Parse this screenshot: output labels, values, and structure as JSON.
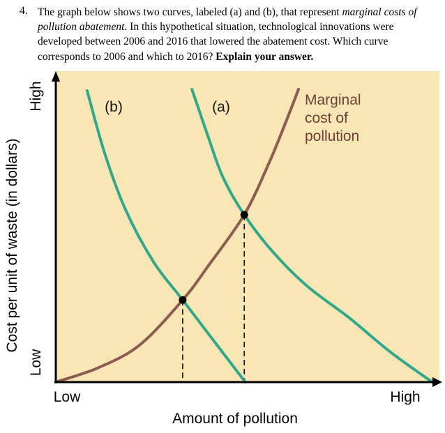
{
  "question": {
    "number": "4.",
    "segments": {
      "lead": "The graph below shows two curves, labeled (a) and (b), that represent ",
      "italic": "marginal costs of pollution abatement",
      "middle": ".  In this hypothetical situation, technological innovations were developed between 2006 and 2016 that lowered the abatement cost.  Which curve corresponds to 2006 and which to 2016?  ",
      "bold": "Explain your answer."
    }
  },
  "chart": {
    "y_axis_title": "Cost per unit of waste (in dollars)",
    "y_high_label": "High",
    "y_low_label": "Low",
    "x_low_label": "Low",
    "x_high_label": "High",
    "x_axis_title": "Amount of pollution",
    "curve_b_label": "(b)",
    "curve_a_label": "(a)",
    "mcp_label": [
      "Marginal",
      "cost of",
      "pollution"
    ],
    "colors": {
      "plot_background": "#F8E6B4",
      "abatement_curves": "#2EA98C",
      "marginal_cost_curve": "#8D5B50",
      "mcp_label_text": "#6E4038",
      "axis": "#000000"
    }
  },
  "chart_data": {
    "type": "line",
    "title": "",
    "x_axis": {
      "label": "Amount of pollution",
      "tick_labels": [
        "Low",
        "High"
      ],
      "range": [
        0,
        1
      ]
    },
    "y_axis": {
      "label": "Cost per unit of waste (in dollars)",
      "tick_labels": [
        "Low",
        "High"
      ],
      "range": [
        0,
        1
      ]
    },
    "grid": false,
    "legend": "none",
    "series": [
      {
        "name": "(b) marginal cost of pollution abatement",
        "color": "#2EA98C",
        "points": [
          [
            0.082,
            0.954
          ],
          [
            0.128,
            0.749
          ],
          [
            0.182,
            0.566
          ],
          [
            0.255,
            0.395
          ],
          [
            0.332,
            0.269
          ],
          [
            0.411,
            0.139
          ],
          [
            0.496,
            0.0
          ]
        ]
      },
      {
        "name": "(a) marginal cost of pollution abatement",
        "color": "#2EA98C",
        "points": [
          [
            0.356,
            0.959
          ],
          [
            0.401,
            0.795
          ],
          [
            0.438,
            0.669
          ],
          [
            0.493,
            0.548
          ],
          [
            0.566,
            0.429
          ],
          [
            0.657,
            0.315
          ],
          [
            0.766,
            0.212
          ],
          [
            0.876,
            0.098
          ],
          [
            0.985,
            0.0
          ]
        ]
      },
      {
        "name": "Marginal cost of pollution",
        "color": "#8D5B50",
        "points": [
          [
            0.0,
            0.0
          ],
          [
            0.109,
            0.046
          ],
          [
            0.219,
            0.121
          ],
          [
            0.332,
            0.269
          ],
          [
            0.401,
            0.384
          ],
          [
            0.493,
            0.548
          ],
          [
            0.557,
            0.715
          ],
          [
            0.602,
            0.852
          ],
          [
            0.635,
            0.959
          ]
        ]
      }
    ],
    "intersections": [
      {
        "x": 0.332,
        "y": 0.269,
        "label": "intersection of curve (b) with marginal cost of pollution"
      },
      {
        "x": 0.493,
        "y": 0.548,
        "label": "intersection of curve (a) with marginal cost of pollution"
      }
    ]
  }
}
